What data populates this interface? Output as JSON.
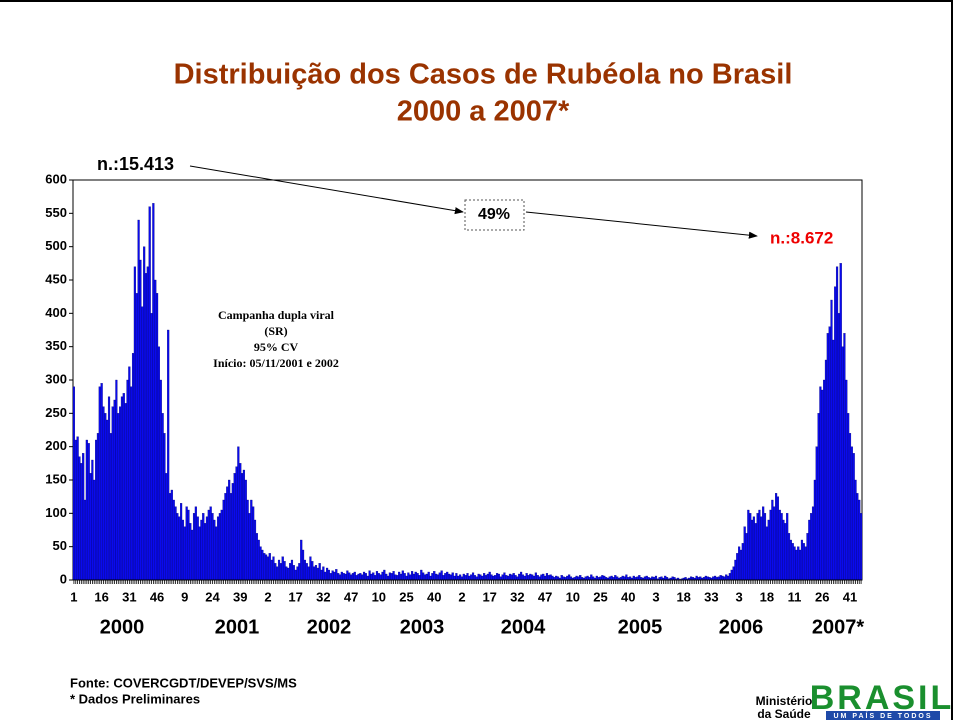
{
  "chart_data": {
    "type": "bar",
    "title": "Distribuição dos Casos de Rubéola no Brasil",
    "subtitle": "2000 a 2007*",
    "annotations": {
      "start": "n.:15.413",
      "change": "49%",
      "end": "n.:8.672",
      "campaign": [
        "Campanha dupla viral",
        "(SR)",
        "95% CV",
        "Início: 05/11/2001 e 2002"
      ]
    },
    "years": [
      "2000",
      "2001",
      "2002",
      "2003",
      "2004",
      "2005",
      "2006",
      "2007*"
    ],
    "source": [
      "Fonte: COVERCGDT/DEVEP/SVS/MS",
      "* Dados Preliminares"
    ],
    "footer": {
      "ministry": [
        "Ministério",
        "da Saúde"
      ],
      "brand": "BRASIL",
      "slogan": "UM PAÍS DE TODOS"
    },
    "color": "#0a0aee",
    "ylim": [
      0,
      600
    ],
    "yticks": [
      0,
      50,
      100,
      150,
      200,
      250,
      300,
      350,
      400,
      450,
      500,
      550,
      600
    ],
    "categories": [
      "1",
      null,
      null,
      null,
      null,
      null,
      null,
      null,
      null,
      null,
      null,
      null,
      null,
      null,
      null,
      "16",
      null,
      null,
      null,
      null,
      null,
      null,
      null,
      null,
      null,
      null,
      null,
      null,
      null,
      null,
      "31",
      null,
      null,
      null,
      null,
      null,
      null,
      null,
      null,
      null,
      null,
      null,
      null,
      null,
      null,
      "46",
      null,
      null,
      null,
      null,
      null,
      null,
      null,
      null,
      null,
      null,
      null,
      null,
      null,
      null,
      "9",
      null,
      null,
      null,
      null,
      null,
      null,
      null,
      null,
      null,
      null,
      null,
      null,
      null,
      null,
      "24",
      null,
      null,
      null,
      null,
      null,
      null,
      null,
      null,
      null,
      null,
      null,
      null,
      null,
      null,
      "39",
      null,
      null,
      null,
      null,
      null,
      null,
      null,
      null,
      null,
      null,
      null,
      null,
      null,
      null,
      "2",
      null,
      null,
      null,
      null,
      null,
      null,
      null,
      null,
      null,
      null,
      null,
      null,
      null,
      null,
      "17",
      null,
      null,
      null,
      null,
      null,
      null,
      null,
      null,
      null,
      null,
      null,
      null,
      null,
      null,
      "32",
      null,
      null,
      null,
      null,
      null,
      null,
      null,
      null,
      null,
      null,
      null,
      null,
      null,
      null,
      "47",
      null,
      null,
      null,
      null,
      null,
      null,
      null,
      null,
      null,
      null,
      null,
      null,
      null,
      null,
      "10",
      null,
      null,
      null,
      null,
      null,
      null,
      null,
      null,
      null,
      null,
      null,
      null,
      null,
      null,
      "25",
      null,
      null,
      null,
      null,
      null,
      null,
      null,
      null,
      null,
      null,
      null,
      null,
      null,
      null,
      "40",
      null,
      null,
      null,
      null,
      null,
      null,
      null,
      null,
      null,
      null,
      null,
      null,
      null,
      null,
      "2",
      null,
      null,
      null,
      null,
      null,
      null,
      null,
      null,
      null,
      null,
      null,
      null,
      null,
      null,
      "17",
      null,
      null,
      null,
      null,
      null,
      null,
      null,
      null,
      null,
      null,
      null,
      null,
      null,
      null,
      "32",
      null,
      null,
      null,
      null,
      null,
      null,
      null,
      null,
      null,
      null,
      null,
      null,
      null,
      null,
      "47",
      null,
      null,
      null,
      null,
      null,
      null,
      null,
      null,
      null,
      null,
      null,
      null,
      null,
      null,
      "10",
      null,
      null,
      null,
      null,
      null,
      null,
      null,
      null,
      null,
      null,
      null,
      null,
      null,
      null,
      "25",
      null,
      null,
      null,
      null,
      null,
      null,
      null,
      null,
      null,
      null,
      null,
      null,
      null,
      null,
      "40",
      null,
      null,
      null,
      null,
      null,
      null,
      null,
      null,
      null,
      null,
      null,
      null,
      null,
      null,
      "3",
      null,
      null,
      null,
      null,
      null,
      null,
      null,
      null,
      null,
      null,
      null,
      null,
      null,
      null,
      "18",
      null,
      null,
      null,
      null,
      null,
      null,
      null,
      null,
      null,
      null,
      null,
      null,
      null,
      null,
      "33",
      null,
      null,
      null,
      null,
      null,
      null,
      null,
      null,
      null,
      null,
      null,
      null,
      null,
      null,
      "3",
      null,
      null,
      null,
      null,
      null,
      null,
      null,
      null,
      null,
      null,
      null,
      null,
      null,
      null,
      "18",
      null,
      null,
      null,
      null,
      null,
      null,
      null,
      null,
      null,
      null,
      null,
      null,
      null,
      null,
      "11",
      null,
      null,
      null,
      null,
      null,
      null,
      null,
      null,
      null,
      null,
      null,
      null,
      null,
      null,
      "26",
      null,
      null,
      null,
      null,
      null,
      null,
      null,
      null,
      null,
      null,
      null,
      null,
      null,
      null,
      "41",
      null,
      null,
      null,
      null,
      null,
      null
    ],
    "values": [
      290,
      210,
      215,
      185,
      175,
      190,
      120,
      210,
      205,
      160,
      180,
      150,
      210,
      220,
      290,
      295,
      260,
      250,
      240,
      275,
      220,
      260,
      270,
      300,
      250,
      260,
      275,
      280,
      265,
      300,
      320,
      290,
      340,
      470,
      430,
      540,
      480,
      410,
      500,
      460,
      470,
      560,
      400,
      565,
      450,
      430,
      350,
      300,
      250,
      220,
      160,
      375,
      130,
      135,
      120,
      110,
      100,
      95,
      115,
      90,
      80,
      110,
      105,
      85,
      75,
      100,
      110,
      95,
      80,
      90,
      100,
      85,
      95,
      105,
      110,
      100,
      90,
      80,
      95,
      100,
      105,
      120,
      130,
      140,
      150,
      130,
      145,
      160,
      170,
      200,
      175,
      160,
      165,
      150,
      120,
      100,
      120,
      110,
      90,
      70,
      60,
      50,
      45,
      40,
      38,
      35,
      40,
      30,
      35,
      25,
      20,
      30,
      25,
      35,
      28,
      20,
      18,
      25,
      30,
      22,
      15,
      20,
      25,
      60,
      45,
      30,
      25,
      20,
      35,
      28,
      20,
      22,
      18,
      25,
      15,
      20,
      12,
      18,
      15,
      10,
      14,
      12,
      16,
      10,
      8,
      12,
      10,
      9,
      14,
      11,
      8,
      10,
      12,
      7,
      9,
      10,
      8,
      12,
      10,
      6,
      14,
      9,
      11,
      7,
      13,
      10,
      8,
      12,
      15,
      9,
      6,
      11,
      10,
      13,
      8,
      7,
      12,
      9,
      14,
      10,
      6,
      11,
      8,
      13,
      9,
      12,
      10,
      7,
      15,
      11,
      8,
      9,
      12,
      6,
      10,
      13,
      9,
      8,
      11,
      14,
      7,
      10,
      12,
      9,
      8,
      11,
      6,
      10,
      6,
      8,
      5,
      9,
      7,
      10,
      6,
      8,
      11,
      7,
      5,
      9,
      8,
      6,
      10,
      7,
      9,
      12,
      8,
      6,
      7,
      10,
      9,
      5,
      8,
      11,
      7,
      6,
      9,
      8,
      10,
      7,
      5,
      9,
      12,
      8,
      6,
      10,
      7,
      9,
      8,
      6,
      11,
      7,
      5,
      8,
      9,
      6,
      10,
      7,
      8,
      6,
      4,
      6,
      5,
      3,
      7,
      5,
      4,
      6,
      8,
      5,
      3,
      4,
      6,
      5,
      7,
      4,
      3,
      5,
      6,
      4,
      8,
      5,
      3,
      6,
      4,
      5,
      7,
      6,
      4,
      3,
      5,
      6,
      4,
      7,
      5,
      3,
      4,
      6,
      5,
      8,
      4,
      5,
      3,
      6,
      4,
      5,
      7,
      4,
      3,
      5,
      6,
      4,
      3,
      5,
      4,
      6,
      2,
      4,
      5,
      3,
      6,
      4,
      2,
      3,
      5,
      4,
      2,
      3,
      1,
      2,
      3,
      4,
      2,
      3,
      5,
      4,
      3,
      6,
      4,
      5,
      3,
      4,
      6,
      5,
      4,
      3,
      5,
      6,
      4,
      5,
      7,
      6,
      5,
      8,
      6,
      10,
      15,
      20,
      30,
      40,
      50,
      45,
      55,
      80,
      70,
      105,
      100,
      90,
      95,
      85,
      100,
      105,
      95,
      110,
      100,
      80,
      90,
      105,
      120,
      110,
      130,
      125,
      105,
      100,
      90,
      85,
      100,
      70,
      60,
      55,
      50,
      45,
      50,
      45,
      60,
      55,
      50,
      70,
      90,
      100,
      110,
      150,
      200,
      250,
      290,
      285,
      300,
      330,
      370,
      380,
      420,
      360,
      440,
      470,
      400,
      475,
      350,
      370,
      300,
      250,
      220,
      200,
      190,
      150,
      130,
      120,
      100
    ]
  }
}
